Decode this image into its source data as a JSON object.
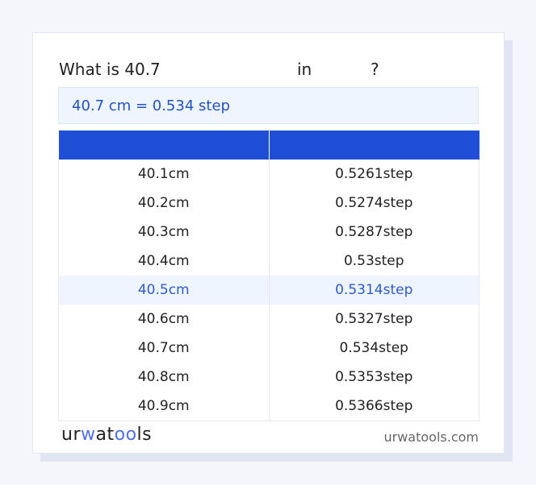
{
  "title": {
    "prefix": "What is 40.7",
    "middle": "in",
    "suffix": "?"
  },
  "result": "40.7 cm = 0.534 step",
  "table": {
    "headers": [
      "",
      ""
    ],
    "rows": [
      [
        "40.1cm",
        "0.5261step"
      ],
      [
        "40.2cm",
        "0.5274step"
      ],
      [
        "40.3cm",
        "0.5287step"
      ],
      [
        "40.4cm",
        "0.53step"
      ],
      [
        "40.5cm",
        "0.5314step"
      ],
      [
        "40.6cm",
        "0.5327step"
      ],
      [
        "40.7cm",
        "0.534step"
      ],
      [
        "40.8cm",
        "0.5353step"
      ],
      [
        "40.9cm",
        "0.5366step"
      ]
    ],
    "highlighted_row": 4
  },
  "footer": {
    "logo": "urwatools",
    "site": "urwatools.com"
  },
  "colors": {
    "accent": "#1f4fd6",
    "highlight_bg": "#eef5ff",
    "highlight_text": "#2f5bd0"
  }
}
